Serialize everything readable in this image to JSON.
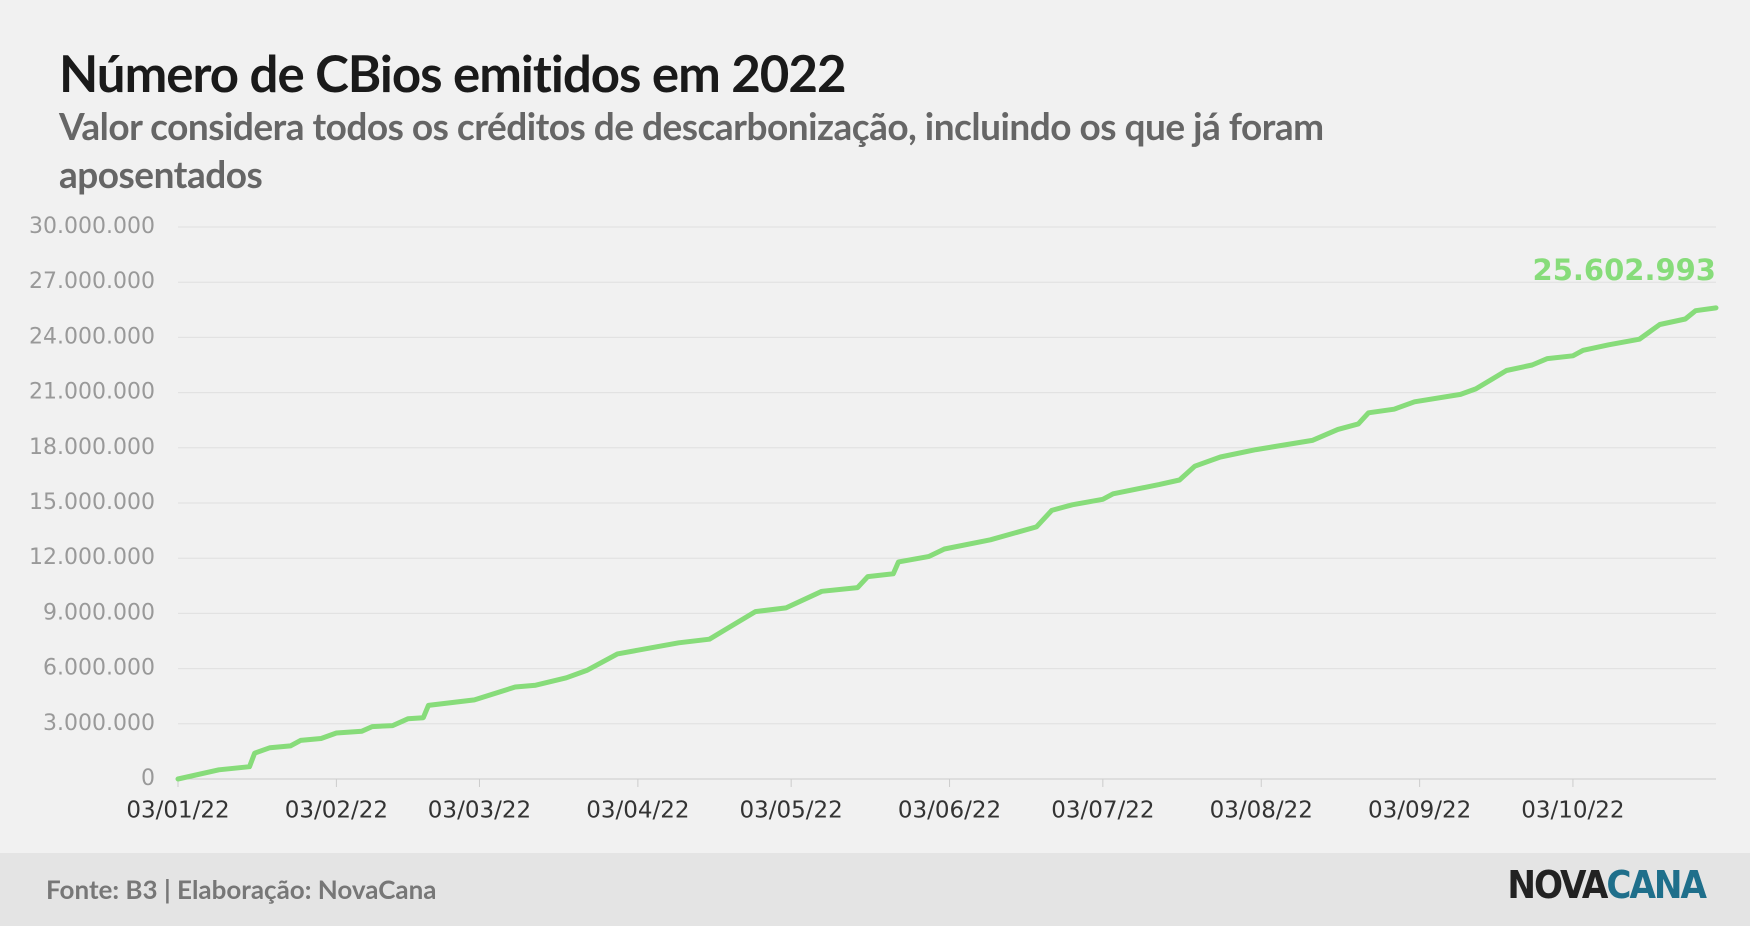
{
  "chart_data": {
    "type": "line",
    "title": "Número de CBios emitidos em 2022",
    "subtitle": "Valor considera todos os créditos de descarbonização, incluindo os que já foram aposentados",
    "source": "Fonte: B3 | Elaboração: NovaCana",
    "logo": {
      "left": "NOVA",
      "right": "CANA"
    },
    "x": [
      "2022-01-03",
      "2022-01-11",
      "2022-01-17",
      "2022-01-18",
      "2022-01-21",
      "2022-01-25",
      "2022-01-27",
      "2022-01-31",
      "2022-02-03",
      "2022-02-08",
      "2022-02-10",
      "2022-02-14",
      "2022-02-17",
      "2022-02-20",
      "2022-02-21",
      "2022-03-02",
      "2022-03-10",
      "2022-03-14",
      "2022-03-20",
      "2022-03-24",
      "2022-03-30",
      "2022-04-03",
      "2022-04-11",
      "2022-04-17",
      "2022-04-20",
      "2022-04-26",
      "2022-05-02",
      "2022-05-09",
      "2022-05-16",
      "2022-05-18",
      "2022-05-23",
      "2022-05-24",
      "2022-05-30",
      "2022-06-02",
      "2022-06-11",
      "2022-06-20",
      "2022-06-23",
      "2022-06-27",
      "2022-07-03",
      "2022-07-05",
      "2022-07-14",
      "2022-07-18",
      "2022-07-21",
      "2022-07-26",
      "2022-08-02",
      "2022-08-13",
      "2022-08-18",
      "2022-08-22",
      "2022-08-24",
      "2022-08-29",
      "2022-09-02",
      "2022-09-11",
      "2022-09-14",
      "2022-09-20",
      "2022-09-25",
      "2022-09-28",
      "2022-10-03",
      "2022-10-05",
      "2022-10-10",
      "2022-10-16",
      "2022-10-20",
      "2022-10-25",
      "2022-10-27",
      "2022-10-31"
    ],
    "series": [
      {
        "name": "CBios",
        "color": "#87dc7a",
        "values": [
          0,
          500000,
          670000,
          1400000,
          1700000,
          1800000,
          2100000,
          2200000,
          2500000,
          2600000,
          2850000,
          2900000,
          3270000,
          3330000,
          4000000,
          4300000,
          5000000,
          5100000,
          5500000,
          5900000,
          6800000,
          7000000,
          7400000,
          7600000,
          8100000,
          9100000,
          9300000,
          10200000,
          10400000,
          11000000,
          11150000,
          11800000,
          12100000,
          12500000,
          13000000,
          13700000,
          14600000,
          14900000,
          15200000,
          15500000,
          16000000,
          16250000,
          17000000,
          17500000,
          17900000,
          18400000,
          19000000,
          19300000,
          19900000,
          20100000,
          20500000,
          20900000,
          21200000,
          22200000,
          22500000,
          22850000,
          23000000,
          23300000,
          23600000,
          23900000,
          24700000,
          25000000,
          25450000,
          25602993
        ],
        "value_labels": [
          null,
          null,
          null,
          null,
          null,
          null,
          null,
          null,
          null,
          null,
          null,
          null,
          null,
          null,
          null,
          null,
          null,
          null,
          null,
          null,
          null,
          null,
          null,
          null,
          null,
          null,
          null,
          null,
          null,
          null,
          null,
          null,
          null,
          null,
          null,
          null,
          null,
          null,
          null,
          null,
          null,
          null,
          null,
          null,
          null,
          null,
          null,
          null,
          null,
          null,
          null,
          null,
          null,
          null,
          null,
          null,
          null,
          null,
          null,
          null,
          null,
          null,
          null,
          "25.602.993"
        ]
      }
    ],
    "xlim": [
      "2022-01-03",
      "2022-10-31"
    ],
    "xticks": [
      {
        "value": "2022-01-03",
        "label": "03/01/22"
      },
      {
        "value": "2022-02-03",
        "label": "03/02/22"
      },
      {
        "value": "2022-03-03",
        "label": "03/03/22"
      },
      {
        "value": "2022-04-03",
        "label": "03/04/22"
      },
      {
        "value": "2022-05-03",
        "label": "03/05/22"
      },
      {
        "value": "2022-06-03",
        "label": "03/06/22"
      },
      {
        "value": "2022-07-03",
        "label": "03/07/22"
      },
      {
        "value": "2022-08-03",
        "label": "03/08/22"
      },
      {
        "value": "2022-09-03",
        "label": "03/09/22"
      },
      {
        "value": "2022-10-03",
        "label": "03/10/22"
      }
    ],
    "ylim": [
      0,
      30000000
    ],
    "yticks": [
      0,
      {
        "value": 3000000,
        "label": "3.000.000"
      },
      {
        "value": 6000000,
        "label": "6.000.000"
      },
      {
        "value": 9000000,
        "label": "9.000.000"
      },
      {
        "value": 12000000,
        "label": "12.000.000"
      },
      {
        "value": 15000000,
        "label": "15.000.000"
      },
      {
        "value": 18000000,
        "label": "18.000.000"
      },
      {
        "value": 21000000,
        "label": "21.000.000"
      },
      {
        "value": 24000000,
        "label": "24.000.000"
      },
      {
        "value": 27000000,
        "label": "27.000.000"
      },
      {
        "value": 30000000,
        "label": "30.000.000"
      }
    ],
    "grid": true
  }
}
